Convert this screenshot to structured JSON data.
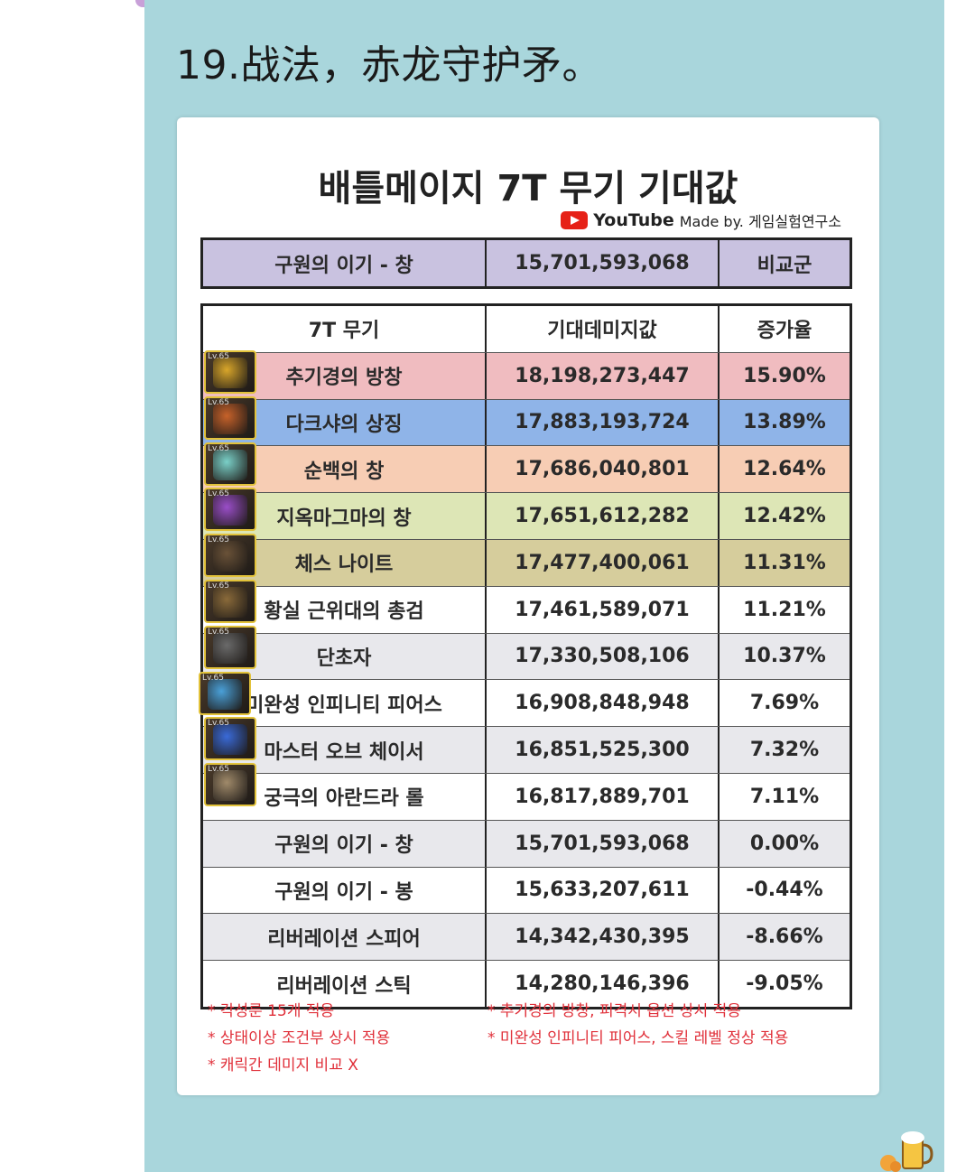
{
  "post": {
    "caption": "19.战法，赤龙守护矛。"
  },
  "card": {
    "title": "배틀메이지 7T 무기 기대값",
    "credit_brand": "YouTube",
    "credit_text": "Made by. 게임실험연구소"
  },
  "reference": {
    "name": "구원의 이기 - 창",
    "value": "15,701,593,068",
    "tag": "비교군"
  },
  "table": {
    "headers": [
      "7T 무기",
      "기대데미지값",
      "증가율"
    ],
    "rows": [
      {
        "name": "추기경의 방창",
        "value": "18,198,273,447",
        "rate": "15.90%",
        "color": "#f0bcc0",
        "icon": "spear-gold-icon"
      },
      {
        "name": "다크샤의 상징",
        "value": "17,883,193,724",
        "rate": "13.89%",
        "color": "#8fb4e8",
        "icon": "book-icon"
      },
      {
        "name": "순백의 창",
        "value": "17,686,040,801",
        "rate": "12.64%",
        "color": "#f7cdb4",
        "icon": "white-spear-icon"
      },
      {
        "name": "지옥마그마의 창",
        "value": "17,651,612,282",
        "rate": "12.42%",
        "color": "#dde6b6",
        "icon": "magma-spear-icon"
      },
      {
        "name": "체스 나이트",
        "value": "17,477,400,061",
        "rate": "11.31%",
        "color": "#d6cd9c",
        "icon": "chess-knight-icon"
      },
      {
        "name": "황실 근위대의 총검",
        "value": "17,461,589,071",
        "rate": "11.21%",
        "color": "#ffffff",
        "icon": "bayonet-icon"
      },
      {
        "name": "단초자",
        "value": "17,330,508,106",
        "rate": "10.37%",
        "color": "#e8e8ec",
        "icon": "staff-icon"
      },
      {
        "name": "미완성 인피니티 피어스",
        "value": "16,908,848,948",
        "rate": "7.69%",
        "color": "#ffffff",
        "icon": "pierce-icon"
      },
      {
        "name": "마스터 오브 체이서",
        "value": "16,851,525,300",
        "rate": "7.32%",
        "color": "#e8e8ec",
        "icon": "chaser-icon"
      },
      {
        "name": "궁극의 아란드라 롤",
        "value": "16,817,889,701",
        "rate": "7.11%",
        "color": "#ffffff",
        "icon": "orb-icon"
      },
      {
        "name": "구원의 이기 - 창",
        "value": "15,701,593,068",
        "rate": "0.00%",
        "color": "#e8e8ec",
        "icon": ""
      },
      {
        "name": "구원의 이기 - 봉",
        "value": "15,633,207,611",
        "rate": "-0.44%",
        "color": "#ffffff",
        "icon": ""
      },
      {
        "name": "리버레이션 스피어",
        "value": "14,342,430,395",
        "rate": "-8.66%",
        "color": "#e8e8ec",
        "icon": ""
      },
      {
        "name": "리버레이션 스틱",
        "value": "14,280,146,396",
        "rate": "-9.05%",
        "color": "#ffffff",
        "icon": ""
      }
    ]
  },
  "notes": {
    "n1": "* 각성룬 15개 적용",
    "n2": "* 상태이상 조건부 상시 적용",
    "n3": "* 캐릭간 데미지 비교 X",
    "n4": "* 추기경의 방창, 피격시 옵션 상시 적용",
    "n5": "* 미완성 인피니티 피어스, 스킬 레벨 정상 적용"
  },
  "icon_level": "Lv.65"
}
